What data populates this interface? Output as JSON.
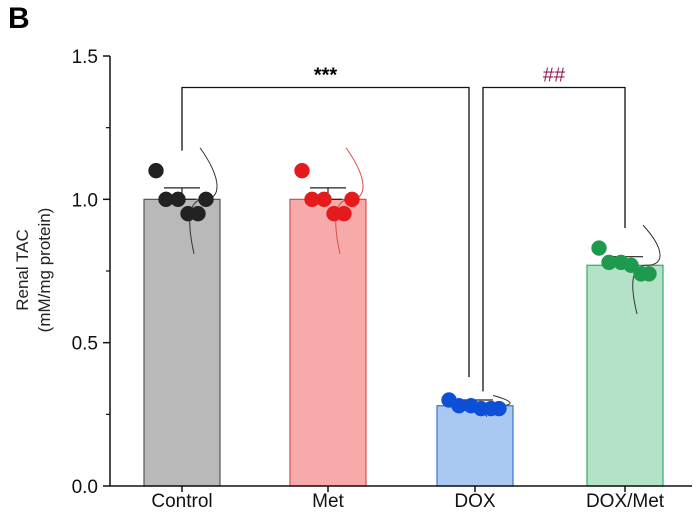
{
  "panel_label": "B",
  "chart_data": {
    "type": "bar",
    "ylabel": [
      "Renal TAC",
      "(mM/mg protein)"
    ],
    "ylim": [
      0,
      1.5
    ],
    "yticks": [
      0.0,
      0.5,
      1.0,
      1.5
    ],
    "ytick_labels": [
      "0.0",
      "0.5",
      "1.0",
      "1.5"
    ],
    "categories": [
      "Control",
      "Met",
      "DOX",
      "DOX/Met"
    ],
    "values": [
      1.0,
      1.0,
      0.28,
      0.77
    ],
    "sem": [
      0.04,
      0.04,
      0.02,
      0.03
    ],
    "points": [
      [
        1.1,
        1.0,
        1.0,
        0.95,
        0.95,
        1.0
      ],
      [
        1.1,
        1.0,
        1.0,
        0.95,
        0.95,
        1.0
      ],
      [
        0.3,
        0.28,
        0.28,
        0.27,
        0.27,
        0.27
      ],
      [
        0.83,
        0.78,
        0.78,
        0.77,
        0.74,
        0.74
      ]
    ],
    "fill_colors": [
      "#b9b9b9",
      "#f7aaaa",
      "#a9c8f2",
      "#b3e2c7"
    ],
    "edge_colors": [
      "#555555",
      "#d84c4c",
      "#3a74c8",
      "#3aa86b"
    ],
    "point_colors": [
      "#222222",
      "#e51a1a",
      "#0d4fd6",
      "#1e9a4e"
    ],
    "significance": [
      {
        "from": 0,
        "to": 2,
        "y": 1.39,
        "label": "***",
        "color": "#000000"
      },
      {
        "from": 2,
        "to": 3,
        "y": 1.39,
        "label": "##",
        "color": "#8b1e5a"
      }
    ]
  }
}
